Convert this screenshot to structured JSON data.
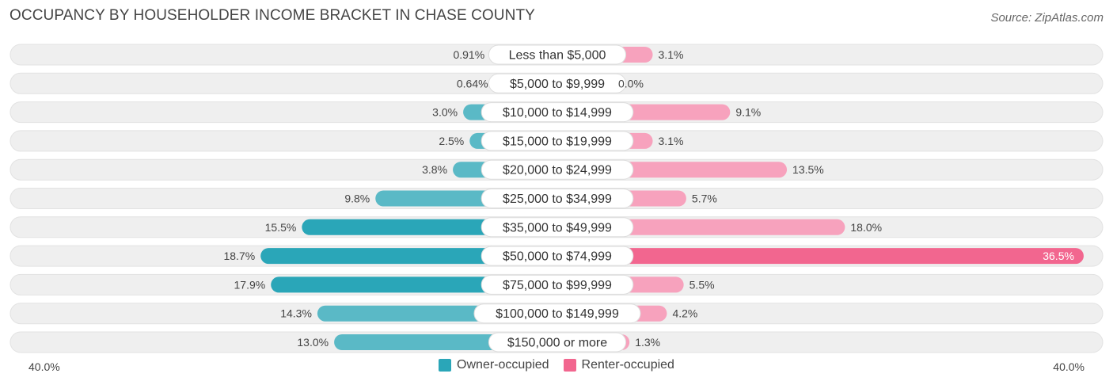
{
  "title": "OCCUPANCY BY HOUSEHOLDER INCOME BRACKET IN CHASE COUNTY",
  "source": "Source: ZipAtlas.com",
  "colors": {
    "owner": "#5ab9c6",
    "owner_strong": "#2aa6b8",
    "renter": "#f7a2bd",
    "renter_strong": "#f2668f",
    "track": "#efefef"
  },
  "chart_data": {
    "type": "bar",
    "orientation": "horizontal-diverging",
    "title": "OCCUPANCY BY HOUSEHOLDER INCOME BRACKET IN CHASE COUNTY",
    "categories": [
      "Less than $5,000",
      "$5,000 to $9,999",
      "$10,000 to $14,999",
      "$15,000 to $19,999",
      "$20,000 to $24,999",
      "$25,000 to $34,999",
      "$35,000 to $49,999",
      "$50,000 to $74,999",
      "$75,000 to $99,999",
      "$100,000 to $149,999",
      "$150,000 or more"
    ],
    "series": [
      {
        "name": "Owner-occupied",
        "values": [
          0.91,
          0.64,
          3.0,
          2.5,
          3.8,
          9.8,
          15.5,
          18.7,
          17.9,
          14.3,
          13.0
        ],
        "labels": [
          "0.91%",
          "0.64%",
          "3.0%",
          "2.5%",
          "3.8%",
          "9.8%",
          "15.5%",
          "18.7%",
          "17.9%",
          "14.3%",
          "13.0%"
        ]
      },
      {
        "name": "Renter-occupied",
        "values": [
          3.1,
          0.0,
          9.1,
          3.1,
          13.5,
          5.7,
          18.0,
          36.5,
          5.5,
          4.2,
          1.3
        ],
        "labels": [
          "3.1%",
          "0.0%",
          "9.1%",
          "3.1%",
          "13.5%",
          "5.7%",
          "18.0%",
          "36.5%",
          "5.5%",
          "4.2%",
          "1.3%"
        ]
      }
    ],
    "axis": {
      "min_label": "40.0%",
      "max_label": "40.0%",
      "range": [
        0,
        40
      ]
    },
    "legend": [
      "Owner-occupied",
      "Renter-occupied"
    ]
  }
}
